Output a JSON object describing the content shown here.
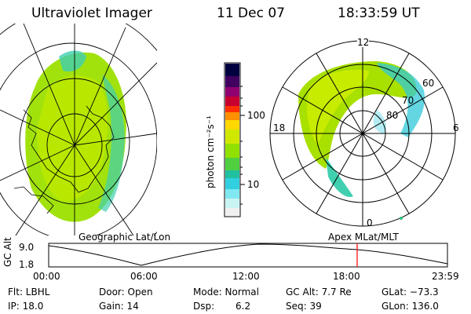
{
  "header": {
    "title": "Ultraviolet Imager",
    "date": "11 Dec 07",
    "time": "18:33:59 UT"
  },
  "colorbar": {
    "unit": "photon cm⁻²s⁻¹",
    "tick_labels": [
      "100",
      "10"
    ],
    "scale": "log",
    "colors": [
      "#000040",
      "#300060",
      "#700070",
      "#a00060",
      "#d00020",
      "#ff4000",
      "#ff9000",
      "#ffd000",
      "#c8e800",
      "#80e000",
      "#40d040",
      "#20c090",
      "#20c8d0",
      "#60e0e8",
      "#b0f0f0",
      "#f0f0f0"
    ]
  },
  "left_panel": {
    "label": "Geographic Lat/Lon"
  },
  "right_panel": {
    "label": "Apex MLat/MLT",
    "mlt_labels": {
      "top": "12",
      "left": "18",
      "right": "6",
      "bottom": "0"
    },
    "lat_labels": [
      "60",
      "70",
      "80"
    ]
  },
  "timeline": {
    "axis_title": "GC Alt",
    "y_ticks": [
      "9.0",
      "1.8"
    ],
    "x_ticks": [
      "00:00",
      "06:00",
      "12:00",
      "18:00",
      "23:59"
    ],
    "current_time_fraction": 0.7736,
    "marker_color": "#ff0000"
  },
  "status": {
    "flt": "Flt: LBHL",
    "ip": "IP: 18.0",
    "door": "Door: Open",
    "gain": "Gain: 14",
    "mode": "Mode: Normal",
    "dsp_label": "Dsp:",
    "dsp_value": "6.2",
    "gc_alt": "GC Alt: 7.7 Re",
    "seq": "Seq: 39",
    "glat": "GLat: −73.3",
    "glon": "GLon: 136.0"
  }
}
